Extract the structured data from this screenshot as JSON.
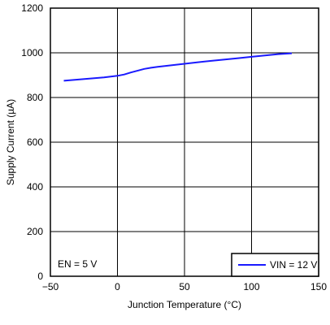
{
  "chart_data": {
    "type": "line",
    "xlabel": "Junction Temperature (°C)",
    "ylabel": "Supply Current (µA)",
    "xlim": [
      -50,
      150
    ],
    "ylim": [
      0,
      1200
    ],
    "x_ticks": [
      -50,
      0,
      50,
      100,
      150
    ],
    "y_ticks": [
      0,
      200,
      400,
      600,
      800,
      1000,
      1200
    ],
    "x_tick_labels": [
      "−50",
      "0",
      "50",
      "100",
      "150"
    ],
    "y_tick_labels": [
      "0",
      "200",
      "400",
      "600",
      "800",
      "1000",
      "1200"
    ],
    "grid": true,
    "legend_position": "bottom-right",
    "annotation": "EN = 5 V",
    "series": [
      {
        "name": "VIN = 12 V",
        "color": "#1a1aff",
        "x": [
          -40,
          -30,
          -20,
          -10,
          0,
          5,
          10,
          20,
          25,
          30,
          40,
          50,
          60,
          70,
          80,
          90,
          100,
          110,
          120,
          130
        ],
        "y": [
          875,
          880,
          885,
          890,
          897,
          903,
          912,
          928,
          933,
          937,
          944,
          951,
          958,
          964,
          970,
          976,
          982,
          988,
          994,
          998
        ]
      }
    ]
  }
}
